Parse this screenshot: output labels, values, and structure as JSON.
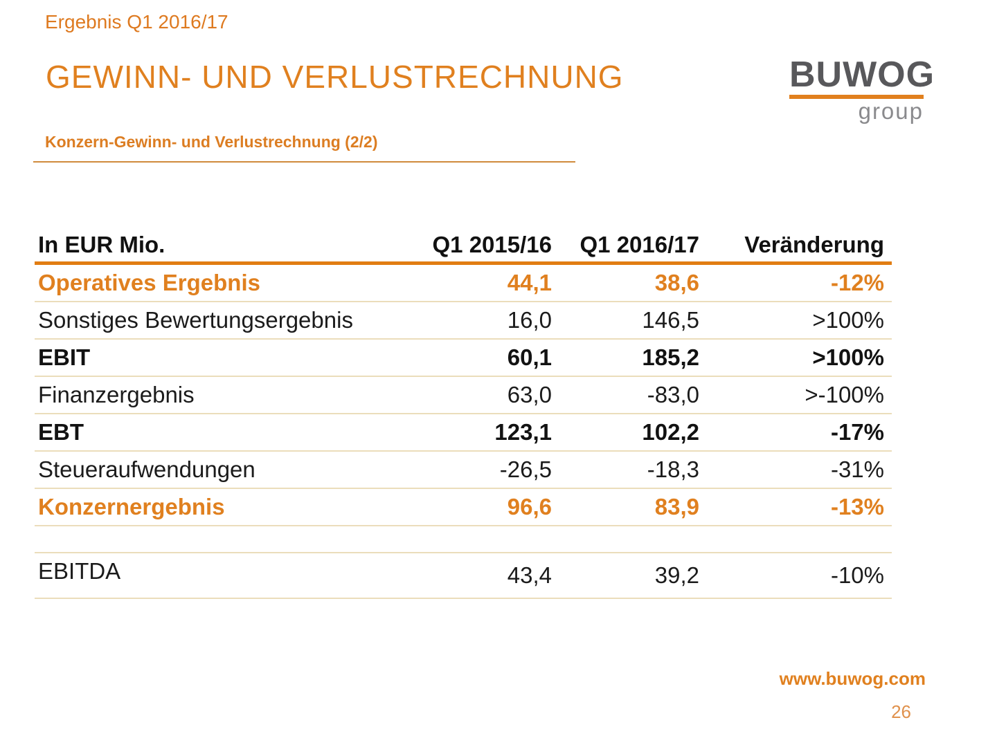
{
  "slide": {
    "eyebrow": "Ergebnis Q1 2016/17",
    "title": "GEWINN- UND VERLUSTRECHNUNG",
    "subtitle": "Konzern-Gewinn- und Verlustrechnung (2/2)",
    "footer_url": "www.buwog.com",
    "page_number": "26"
  },
  "logo": {
    "brand": "BUWOG",
    "suffix": "group"
  },
  "colors": {
    "brand_orange": "#E0801F",
    "table_header_rule": "#E17D13",
    "row_separator": "#EBDDBB",
    "logo_gray": "#58585B",
    "logo_suffix_gray": "#8A8A8D",
    "text_black": "#1B1B1B",
    "page_number_orange": "#E0914C"
  },
  "table": {
    "columns": [
      "In EUR Mio.",
      "Q1 2015/16",
      "Q1 2016/17",
      "Veränderung"
    ],
    "rows": [
      {
        "label": "Operatives Ergebnis",
        "c1": "44,1",
        "c2": "38,6",
        "c3": "-12%"
      },
      {
        "label": "Sonstiges Bewertungsergebnis",
        "c1": "16,0",
        "c2": "146,5",
        "c3": ">100%"
      },
      {
        "label": "EBIT",
        "c1": "60,1",
        "c2": "185,2",
        "c3": ">100%"
      },
      {
        "label": "Finanzergebnis",
        "c1": "63,0",
        "c2": "-83,0",
        "c3": ">-100%"
      },
      {
        "label": "EBT",
        "c1": "123,1",
        "c2": "102,2",
        "c3": "-17%"
      },
      {
        "label": "Steueraufwendungen",
        "c1": "-26,5",
        "c2": "-18,3",
        "c3": "-31%"
      },
      {
        "label": "Konzernergebnis",
        "c1": "96,6",
        "c2": "83,9",
        "c3": "-13%"
      }
    ],
    "extra_row": {
      "label": "EBITDA",
      "c1": "43,4",
      "c2": "39,2",
      "c3": "-10%"
    }
  }
}
